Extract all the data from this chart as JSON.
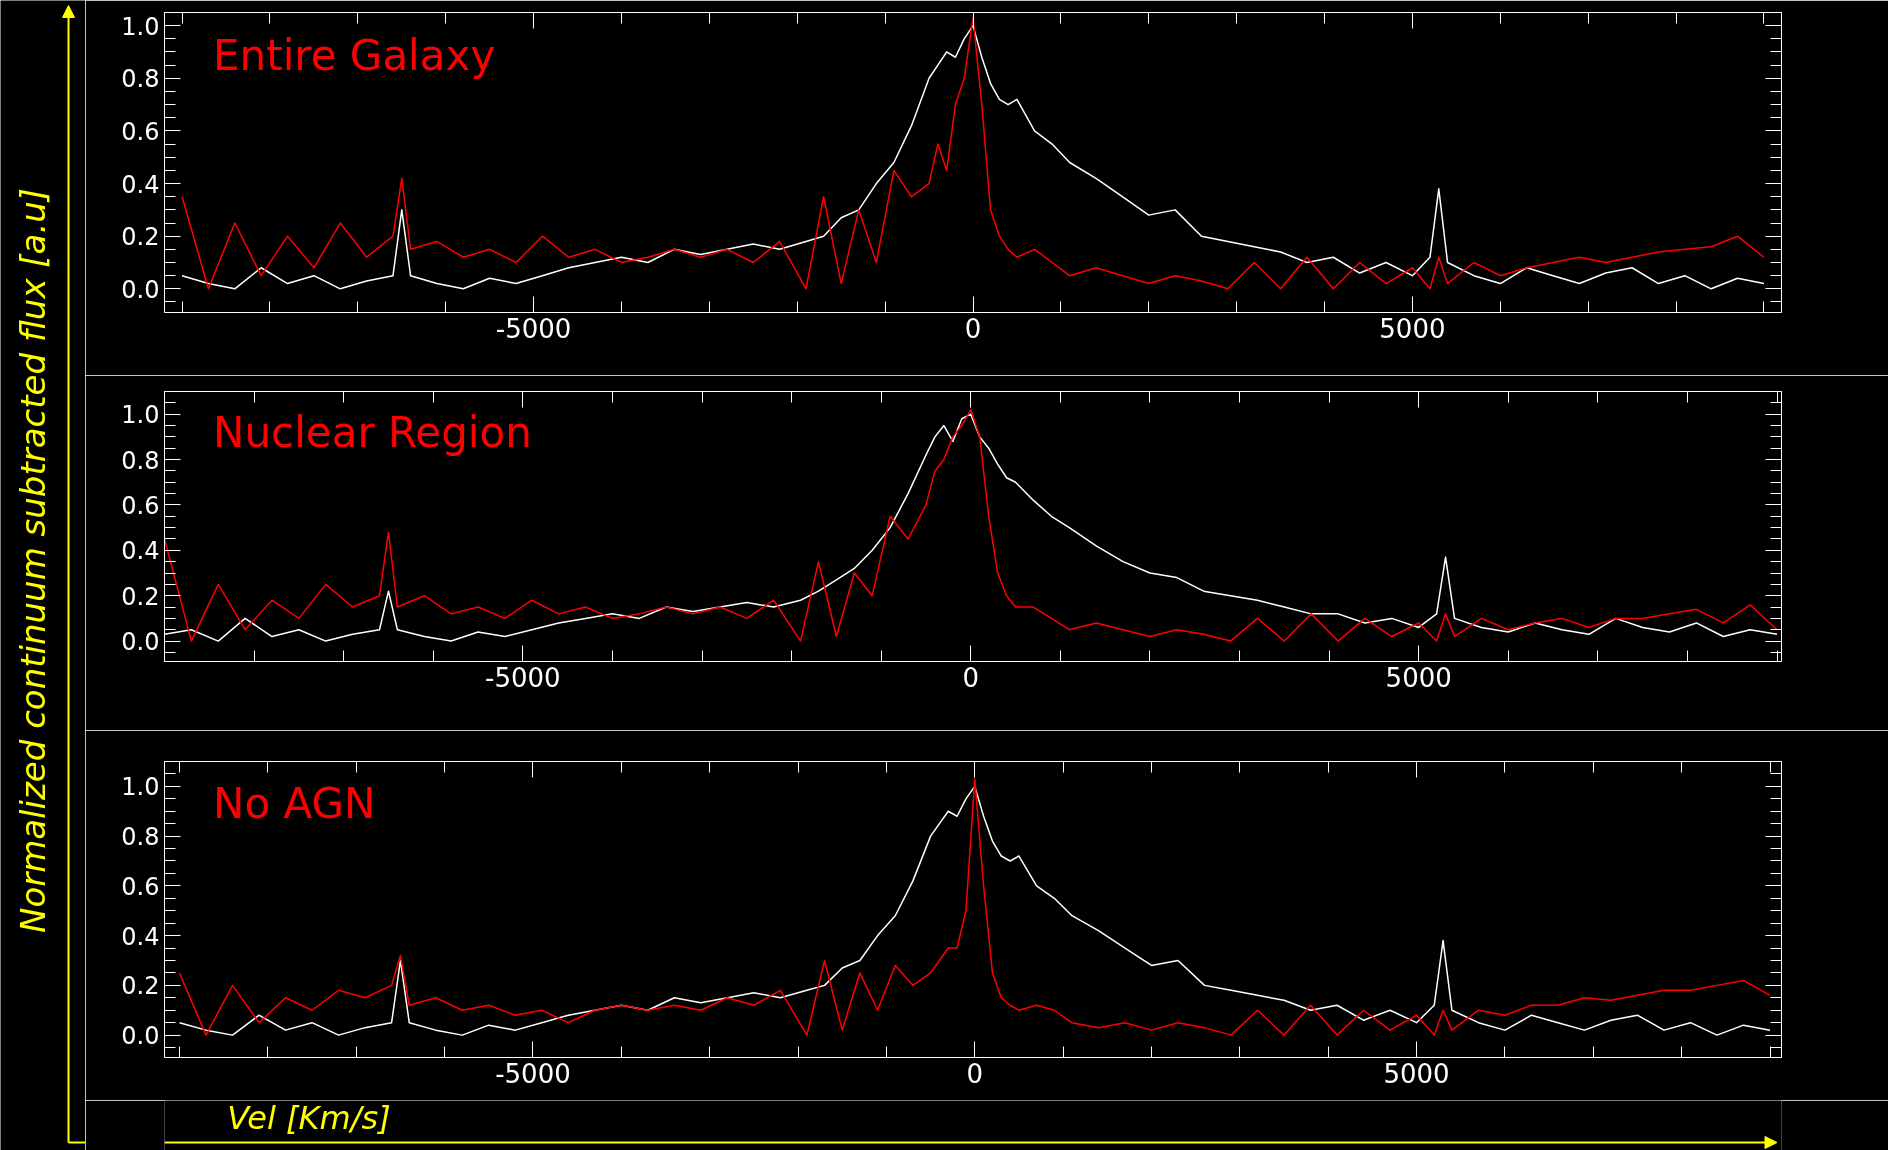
{
  "chart_data": [
    {
      "type": "line",
      "title": "Entire Galaxy",
      "x": [
        -9000,
        -8700,
        -8400,
        -8100,
        -7800,
        -7500,
        -7200,
        -6900,
        -6600,
        -6500,
        -6400,
        -6100,
        -5800,
        -5500,
        -5200,
        -4900,
        -4600,
        -4300,
        -4000,
        -3700,
        -3400,
        -3100,
        -2800,
        -2500,
        -2200,
        -1900,
        -1700,
        -1500,
        -1300,
        -1100,
        -900,
        -700,
        -500,
        -400,
        -300,
        -200,
        -100,
        0,
        100,
        200,
        300,
        400,
        500,
        700,
        900,
        1100,
        1400,
        1700,
        2000,
        2300,
        2600,
        2900,
        3200,
        3500,
        3800,
        4100,
        4400,
        4700,
        5000,
        5200,
        5300,
        5400,
        5700,
        6000,
        6300,
        6600,
        6900,
        7200,
        7500,
        7800,
        8100,
        8400,
        8700,
        9000
      ],
      "series": [
        {
          "color": "#ffffff",
          "values": [
            0.05,
            0.02,
            0.0,
            0.08,
            0.02,
            0.05,
            0.0,
            0.03,
            0.05,
            0.3,
            0.05,
            0.02,
            0.0,
            0.04,
            0.02,
            0.05,
            0.08,
            0.1,
            0.12,
            0.1,
            0.15,
            0.13,
            0.15,
            0.17,
            0.15,
            0.18,
            0.2,
            0.27,
            0.3,
            0.4,
            0.48,
            0.62,
            0.8,
            0.85,
            0.9,
            0.88,
            0.95,
            1.0,
            0.88,
            0.78,
            0.72,
            0.7,
            0.72,
            0.6,
            0.55,
            0.48,
            0.42,
            0.35,
            0.28,
            0.3,
            0.2,
            0.18,
            0.16,
            0.14,
            0.1,
            0.12,
            0.06,
            0.1,
            0.05,
            0.12,
            0.38,
            0.1,
            0.05,
            0.02,
            0.08,
            0.05,
            0.02,
            0.06,
            0.08,
            0.02,
            0.05,
            0.0,
            0.04,
            0.02
          ]
        },
        {
          "color": "#ff0000",
          "values": [
            0.35,
            0.0,
            0.25,
            0.05,
            0.2,
            0.08,
            0.25,
            0.12,
            0.2,
            0.42,
            0.15,
            0.18,
            0.12,
            0.15,
            0.1,
            0.2,
            0.12,
            0.15,
            0.1,
            0.12,
            0.15,
            0.12,
            0.15,
            0.1,
            0.18,
            0.0,
            0.35,
            0.02,
            0.3,
            0.1,
            0.45,
            0.35,
            0.4,
            0.55,
            0.45,
            0.7,
            0.8,
            1.03,
            0.7,
            0.3,
            0.2,
            0.15,
            0.12,
            0.15,
            0.1,
            0.05,
            0.08,
            0.05,
            0.02,
            0.05,
            0.03,
            0.0,
            0.1,
            0.0,
            0.12,
            0.0,
            0.1,
            0.02,
            0.08,
            0.0,
            0.12,
            0.02,
            0.1,
            0.05,
            0.08,
            0.1,
            0.12,
            0.1,
            0.12,
            0.14,
            0.15,
            0.16,
            0.2,
            0.12
          ]
        }
      ],
      "xlim": [
        -9200,
        9200
      ],
      "ylim": [
        -0.09,
        1.05
      ],
      "xticks": [
        -5000,
        0,
        5000
      ],
      "yticks": [
        {
          "value": 0,
          "label": "0.0"
        },
        {
          "value": 0.2,
          "label": "0.2"
        },
        {
          "value": 0.4,
          "label": "0.4"
        },
        {
          "value": 0.6,
          "label": "0.6"
        },
        {
          "value": 0.8,
          "label": "0.8"
        },
        {
          "value": 1,
          "label": "1.0"
        }
      ]
    },
    {
      "type": "line",
      "title": "Nuclear Region",
      "ylabel": "Normalized continuum subtracted flux [a.u]",
      "x": [
        -9000,
        -8700,
        -8400,
        -8100,
        -7800,
        -7500,
        -7200,
        -6900,
        -6600,
        -6500,
        -6400,
        -6100,
        -5800,
        -5500,
        -5200,
        -4900,
        -4600,
        -4300,
        -4000,
        -3700,
        -3400,
        -3100,
        -2800,
        -2500,
        -2200,
        -1900,
        -1700,
        -1500,
        -1300,
        -1100,
        -900,
        -700,
        -500,
        -400,
        -300,
        -200,
        -100,
        0,
        100,
        200,
        300,
        400,
        500,
        700,
        900,
        1100,
        1400,
        1700,
        2000,
        2300,
        2600,
        2900,
        3200,
        3500,
        3800,
        4100,
        4400,
        4700,
        5000,
        5200,
        5300,
        5400,
        5700,
        6000,
        6300,
        6600,
        6900,
        7200,
        7500,
        7800,
        8100,
        8400,
        8700,
        9000
      ],
      "series": [
        {
          "color": "#ffffff",
          "values": [
            0.03,
            0.05,
            0.0,
            0.1,
            0.02,
            0.05,
            0.0,
            0.03,
            0.05,
            0.22,
            0.05,
            0.02,
            0.0,
            0.04,
            0.02,
            0.05,
            0.08,
            0.1,
            0.12,
            0.1,
            0.15,
            0.13,
            0.15,
            0.17,
            0.15,
            0.18,
            0.22,
            0.27,
            0.32,
            0.4,
            0.5,
            0.65,
            0.82,
            0.9,
            0.95,
            0.88,
            0.98,
            1.0,
            0.9,
            0.85,
            0.78,
            0.72,
            0.7,
            0.62,
            0.55,
            0.5,
            0.42,
            0.35,
            0.3,
            0.28,
            0.22,
            0.2,
            0.18,
            0.15,
            0.12,
            0.12,
            0.08,
            0.1,
            0.06,
            0.12,
            0.37,
            0.1,
            0.06,
            0.04,
            0.08,
            0.05,
            0.03,
            0.1,
            0.06,
            0.04,
            0.08,
            0.02,
            0.05,
            0.03
          ]
        },
        {
          "color": "#ff0000",
          "values": [
            0.45,
            0.0,
            0.25,
            0.05,
            0.18,
            0.1,
            0.25,
            0.15,
            0.2,
            0.48,
            0.15,
            0.2,
            0.12,
            0.15,
            0.1,
            0.18,
            0.12,
            0.15,
            0.1,
            0.12,
            0.15,
            0.12,
            0.15,
            0.1,
            0.18,
            0.0,
            0.35,
            0.02,
            0.3,
            0.2,
            0.55,
            0.45,
            0.6,
            0.75,
            0.8,
            0.9,
            0.95,
            1.02,
            0.9,
            0.55,
            0.3,
            0.2,
            0.15,
            0.15,
            0.1,
            0.05,
            0.08,
            0.05,
            0.02,
            0.05,
            0.03,
            0.0,
            0.1,
            0.0,
            0.12,
            0.0,
            0.1,
            0.02,
            0.08,
            0.0,
            0.12,
            0.02,
            0.1,
            0.05,
            0.08,
            0.1,
            0.06,
            0.1,
            0.1,
            0.12,
            0.14,
            0.08,
            0.16,
            0.05
          ]
        }
      ],
      "xlim": [
        -9000,
        9050
      ],
      "ylim": [
        -0.09,
        1.1
      ],
      "xticks": [
        -5000,
        0,
        5000
      ],
      "yticks": [
        {
          "value": 0,
          "label": "0.0"
        },
        {
          "value": 0.2,
          "label": "0.2"
        },
        {
          "value": 0.4,
          "label": "0.4"
        },
        {
          "value": 0.6,
          "label": "0.6"
        },
        {
          "value": 0.8,
          "label": "0.8"
        },
        {
          "value": 1,
          "label": "1.0"
        }
      ]
    },
    {
      "type": "line",
      "title": "No AGN",
      "xlabel": "Vel [Km/s]",
      "x": [
        -9000,
        -8700,
        -8400,
        -8100,
        -7800,
        -7500,
        -7200,
        -6900,
        -6600,
        -6500,
        -6400,
        -6100,
        -5800,
        -5500,
        -5200,
        -4900,
        -4600,
        -4300,
        -4000,
        -3700,
        -3400,
        -3100,
        -2800,
        -2500,
        -2200,
        -1900,
        -1700,
        -1500,
        -1300,
        -1100,
        -900,
        -700,
        -500,
        -400,
        -300,
        -200,
        -100,
        0,
        100,
        200,
        300,
        400,
        500,
        700,
        900,
        1100,
        1400,
        1700,
        2000,
        2300,
        2600,
        2900,
        3200,
        3500,
        3800,
        4100,
        4400,
        4700,
        5000,
        5200,
        5300,
        5400,
        5700,
        6000,
        6300,
        6600,
        6900,
        7200,
        7500,
        7800,
        8100,
        8400,
        8700,
        9000
      ],
      "series": [
        {
          "color": "#ffffff",
          "values": [
            0.05,
            0.02,
            0.0,
            0.08,
            0.02,
            0.05,
            0.0,
            0.03,
            0.05,
            0.3,
            0.05,
            0.02,
            0.0,
            0.04,
            0.02,
            0.05,
            0.08,
            0.1,
            0.12,
            0.1,
            0.15,
            0.13,
            0.15,
            0.17,
            0.15,
            0.18,
            0.2,
            0.27,
            0.3,
            0.4,
            0.48,
            0.62,
            0.8,
            0.85,
            0.9,
            0.88,
            0.95,
            1.0,
            0.88,
            0.78,
            0.72,
            0.7,
            0.72,
            0.6,
            0.55,
            0.48,
            0.42,
            0.35,
            0.28,
            0.3,
            0.2,
            0.18,
            0.16,
            0.14,
            0.1,
            0.12,
            0.06,
            0.1,
            0.05,
            0.12,
            0.38,
            0.1,
            0.05,
            0.02,
            0.08,
            0.05,
            0.02,
            0.06,
            0.08,
            0.02,
            0.05,
            0.0,
            0.04,
            0.02
          ]
        },
        {
          "color": "#ff0000",
          "values": [
            0.25,
            0.0,
            0.2,
            0.05,
            0.15,
            0.1,
            0.18,
            0.15,
            0.2,
            0.32,
            0.12,
            0.15,
            0.1,
            0.12,
            0.08,
            0.1,
            0.05,
            0.1,
            0.12,
            0.1,
            0.12,
            0.1,
            0.15,
            0.12,
            0.18,
            0.0,
            0.3,
            0.02,
            0.25,
            0.1,
            0.28,
            0.2,
            0.25,
            0.3,
            0.35,
            0.35,
            0.5,
            1.03,
            0.6,
            0.25,
            0.15,
            0.12,
            0.1,
            0.12,
            0.1,
            0.05,
            0.03,
            0.05,
            0.02,
            0.05,
            0.03,
            0.0,
            0.1,
            0.0,
            0.12,
            0.0,
            0.1,
            0.02,
            0.08,
            0.0,
            0.1,
            0.02,
            0.1,
            0.08,
            0.12,
            0.12,
            0.15,
            0.14,
            0.16,
            0.18,
            0.18,
            0.2,
            0.22,
            0.16
          ]
        }
      ],
      "xlim": [
        -9170,
        9130
      ],
      "ylim": [
        -0.09,
        1.1
      ],
      "xticks": [
        -5000,
        0,
        5000
      ],
      "yticks": [
        {
          "value": 0,
          "label": "0.0"
        },
        {
          "value": 0.2,
          "label": "0.2"
        },
        {
          "value": 0.4,
          "label": "0.4"
        },
        {
          "value": 0.6,
          "label": "0.6"
        },
        {
          "value": 0.8,
          "label": "0.8"
        },
        {
          "value": 1,
          "label": "1.0"
        }
      ]
    }
  ]
}
